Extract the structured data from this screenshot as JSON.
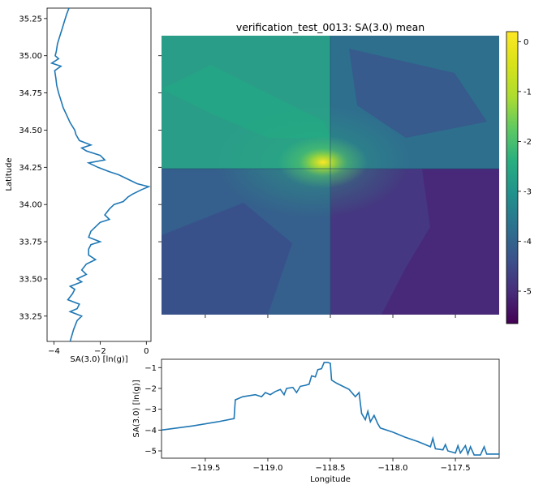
{
  "chart_data": [
    {
      "type": "heatmap",
      "title": "verification_test_0013: SA(3.0) mean",
      "xlim": [
        -119.85,
        -117.15
      ],
      "ylim": [
        33.08,
        35.13
      ],
      "colormap": "viridis",
      "colorbar": {
        "ticks": [
          "-5",
          "-4",
          "-3",
          "-2",
          "-1",
          "0"
        ],
        "tick_values": [
          -5,
          -4,
          -3,
          -2,
          -1,
          0
        ],
        "range": [
          -5.65,
          0.2
        ]
      },
      "cross_section": {
        "longitude": -118.5,
        "latitude": 34.25
      },
      "peak": {
        "longitude": -118.52,
        "latitude": 34.26,
        "value": 0.0
      }
    },
    {
      "type": "line",
      "xlabel": "SA(3.0) [ln(g)]",
      "ylabel": "Latitude",
      "xlim": [
        -4.3,
        0.2
      ],
      "ylim": [
        33.08,
        35.32
      ],
      "xticks": [
        "−4",
        "−2",
        "0"
      ],
      "xtick_values": [
        -4,
        -2,
        0
      ],
      "yticks": [
        "33.25",
        "33.50",
        "33.75",
        "34.00",
        "34.25",
        "34.50",
        "34.75",
        "35.00",
        "35.25"
      ],
      "ytick_values": [
        33.25,
        33.5,
        33.75,
        34.0,
        34.25,
        34.5,
        34.75,
        35.0,
        35.25
      ],
      "series": [
        {
          "points": [
            [
              -3.3,
              33.08
            ],
            [
              -3.15,
              33.16
            ],
            [
              -3.0,
              33.22
            ],
            [
              -2.8,
              33.25
            ],
            [
              -3.3,
              33.28
            ],
            [
              -3.0,
              33.3
            ],
            [
              -2.9,
              33.33
            ],
            [
              -3.4,
              33.36
            ],
            [
              -3.2,
              33.4
            ],
            [
              -3.1,
              33.43
            ],
            [
              -3.3,
              33.45
            ],
            [
              -2.8,
              33.48
            ],
            [
              -3.0,
              33.5
            ],
            [
              -2.6,
              33.53
            ],
            [
              -2.8,
              33.56
            ],
            [
              -2.6,
              33.6
            ],
            [
              -2.2,
              33.63
            ],
            [
              -2.5,
              33.66
            ],
            [
              -2.5,
              33.7
            ],
            [
              -2.4,
              33.73
            ],
            [
              -2.0,
              33.75
            ],
            [
              -2.5,
              33.78
            ],
            [
              -2.4,
              33.82
            ],
            [
              -2.2,
              33.85
            ],
            [
              -2.0,
              33.88
            ],
            [
              -1.6,
              33.9
            ],
            [
              -1.8,
              33.93
            ],
            [
              -1.6,
              33.97
            ],
            [
              -1.4,
              34.0
            ],
            [
              -1.0,
              34.02
            ],
            [
              -0.8,
              34.05
            ],
            [
              -0.6,
              34.07
            ],
            [
              -0.2,
              34.1
            ],
            [
              0.1,
              34.12
            ],
            [
              -0.4,
              34.14
            ],
            [
              -0.8,
              34.17
            ],
            [
              -1.2,
              34.2
            ],
            [
              -1.6,
              34.22
            ],
            [
              -2.1,
              34.25
            ],
            [
              -2.5,
              34.28
            ],
            [
              -1.8,
              34.3
            ],
            [
              -2.0,
              34.33
            ],
            [
              -2.6,
              34.36
            ],
            [
              -2.8,
              34.38
            ],
            [
              -2.4,
              34.4
            ],
            [
              -2.9,
              34.43
            ],
            [
              -3.05,
              34.47
            ],
            [
              -3.1,
              34.5
            ],
            [
              -3.3,
              34.55
            ],
            [
              -3.45,
              34.6
            ],
            [
              -3.6,
              34.65
            ],
            [
              -3.7,
              34.7
            ],
            [
              -3.8,
              34.75
            ],
            [
              -3.88,
              34.8
            ],
            [
              -3.92,
              34.85
            ],
            [
              -3.97,
              34.9
            ],
            [
              -3.7,
              34.93
            ],
            [
              -4.1,
              34.95
            ],
            [
              -3.8,
              34.98
            ],
            [
              -3.95,
              35.0
            ],
            [
              -3.9,
              35.03
            ],
            [
              -3.85,
              35.08
            ],
            [
              -3.75,
              35.13
            ],
            [
              -3.65,
              35.18
            ],
            [
              -3.55,
              35.23
            ],
            [
              -3.45,
              35.28
            ],
            [
              -3.35,
              35.32
            ]
          ]
        }
      ]
    },
    {
      "type": "line",
      "xlabel": "Longitude",
      "ylabel": "SA(3.0) [ln(g)]",
      "xlim": [
        -119.85,
        -117.15
      ],
      "ylim": [
        -5.35,
        -0.6
      ],
      "xticks": [
        "−119.5",
        "−119.0",
        "−118.5",
        "−118.0",
        "−117.5"
      ],
      "xtick_values": [
        -119.5,
        -119.0,
        -118.5,
        -118.0,
        -117.5
      ],
      "yticks": [
        "−5",
        "−4",
        "−3",
        "−2",
        "−1"
      ],
      "ytick_values": [
        -5,
        -4,
        -3,
        -2,
        -1
      ],
      "series": [
        {
          "points": [
            [
              -119.85,
              -4.0
            ],
            [
              -119.6,
              -3.8
            ],
            [
              -119.4,
              -3.6
            ],
            [
              -119.27,
              -3.45
            ],
            [
              -119.26,
              -2.55
            ],
            [
              -119.2,
              -2.4
            ],
            [
              -119.15,
              -2.35
            ],
            [
              -119.1,
              -2.3
            ],
            [
              -119.05,
              -2.4
            ],
            [
              -119.02,
              -2.2
            ],
            [
              -118.98,
              -2.3
            ],
            [
              -118.94,
              -2.15
            ],
            [
              -118.9,
              -2.05
            ],
            [
              -118.87,
              -2.3
            ],
            [
              -118.85,
              -2.0
            ],
            [
              -118.8,
              -1.95
            ],
            [
              -118.77,
              -2.2
            ],
            [
              -118.74,
              -1.9
            ],
            [
              -118.7,
              -1.85
            ],
            [
              -118.67,
              -1.8
            ],
            [
              -118.65,
              -1.4
            ],
            [
              -118.62,
              -1.45
            ],
            [
              -118.6,
              -1.1
            ],
            [
              -118.57,
              -1.05
            ],
            [
              -118.55,
              -0.75
            ],
            [
              -118.52,
              -0.75
            ],
            [
              -118.5,
              -0.8
            ],
            [
              -118.49,
              -1.6
            ],
            [
              -118.45,
              -1.75
            ],
            [
              -118.4,
              -1.9
            ],
            [
              -118.35,
              -2.05
            ],
            [
              -118.3,
              -2.4
            ],
            [
              -118.27,
              -2.2
            ],
            [
              -118.25,
              -3.2
            ],
            [
              -118.22,
              -3.5
            ],
            [
              -118.2,
              -3.1
            ],
            [
              -118.18,
              -3.6
            ],
            [
              -118.15,
              -3.3
            ],
            [
              -118.12,
              -3.7
            ],
            [
              -118.1,
              -3.9
            ],
            [
              -118.0,
              -4.1
            ],
            [
              -117.9,
              -4.35
            ],
            [
              -117.8,
              -4.55
            ],
            [
              -117.7,
              -4.8
            ],
            [
              -117.68,
              -4.4
            ],
            [
              -117.66,
              -4.9
            ],
            [
              -117.6,
              -4.95
            ],
            [
              -117.58,
              -4.7
            ],
            [
              -117.56,
              -5.0
            ],
            [
              -117.5,
              -5.1
            ],
            [
              -117.48,
              -4.75
            ],
            [
              -117.46,
              -5.1
            ],
            [
              -117.42,
              -4.75
            ],
            [
              -117.4,
              -5.15
            ],
            [
              -117.38,
              -4.8
            ],
            [
              -117.35,
              -5.2
            ],
            [
              -117.3,
              -5.2
            ],
            [
              -117.27,
              -4.8
            ],
            [
              -117.25,
              -5.15
            ],
            [
              -117.15,
              -5.15
            ]
          ]
        }
      ]
    }
  ]
}
